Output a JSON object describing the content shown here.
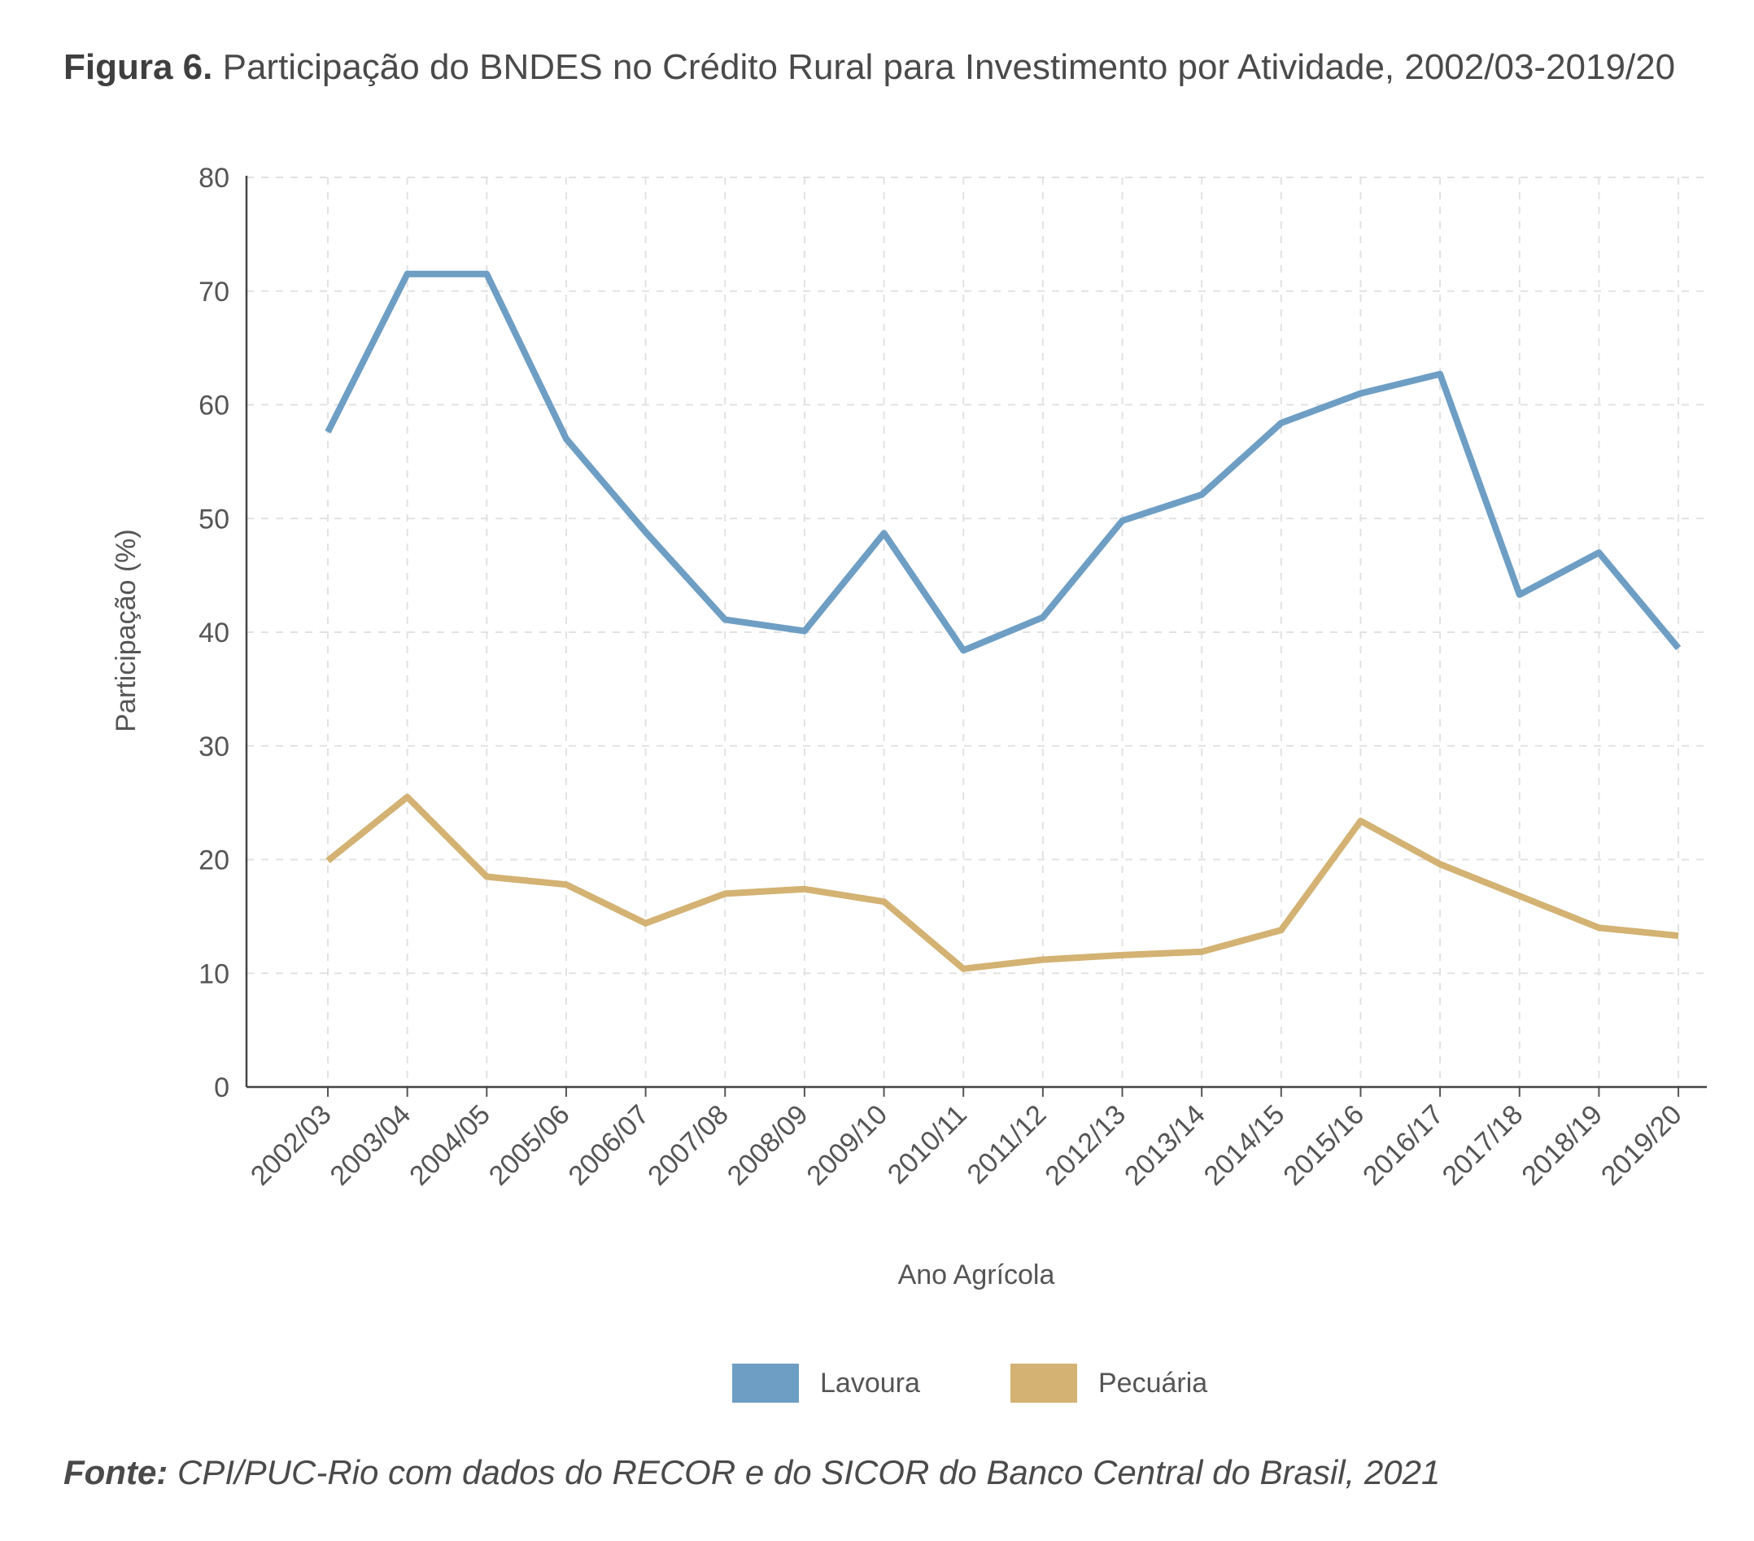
{
  "figure": {
    "label": "Figura 6.",
    "title": "Participação do BNDES no Crédito Rural para Investimento por Atividade, 2002/03-2019/20"
  },
  "source": {
    "label": "Fonte:",
    "text": "CPI/PUC-Rio com dados do RECOR e do SICOR do Banco Central do Brasil, 2021"
  },
  "chart_data": {
    "type": "line",
    "title": "Participação do BNDES no Crédito Rural para Investimento por Atividade, 2002/03-2019/20",
    "xlabel": "Ano Agrícola",
    "ylabel": "Participação (%)",
    "ylim": [
      0,
      80
    ],
    "yticks": [
      0,
      10,
      20,
      30,
      40,
      50,
      60,
      70,
      80
    ],
    "grid": true,
    "legend_position": "bottom-center",
    "categories": [
      "2002/03",
      "2003/04",
      "2004/05",
      "2005/06",
      "2006/07",
      "2007/08",
      "2008/09",
      "2009/10",
      "2010/11",
      "2011/12",
      "2012/13",
      "2013/14",
      "2014/15",
      "2015/16",
      "2016/17",
      "2017/18",
      "2018/19",
      "2019/20"
    ],
    "series": [
      {
        "name": "Lavoura",
        "color": "#6e9ec4",
        "values": [
          57.6,
          71.5,
          71.5,
          57.0,
          48.8,
          41.1,
          40.1,
          48.7,
          38.4,
          41.3,
          49.8,
          52.1,
          58.4,
          61.0,
          62.7,
          43.3,
          47.0,
          38.6
        ]
      },
      {
        "name": "Pecuária",
        "color": "#d3b273",
        "values": [
          19.9,
          25.5,
          18.5,
          17.8,
          14.4,
          17.0,
          17.4,
          16.3,
          10.4,
          11.2,
          11.6,
          11.9,
          13.8,
          23.4,
          19.6,
          16.8,
          14.0,
          13.3
        ]
      }
    ]
  }
}
